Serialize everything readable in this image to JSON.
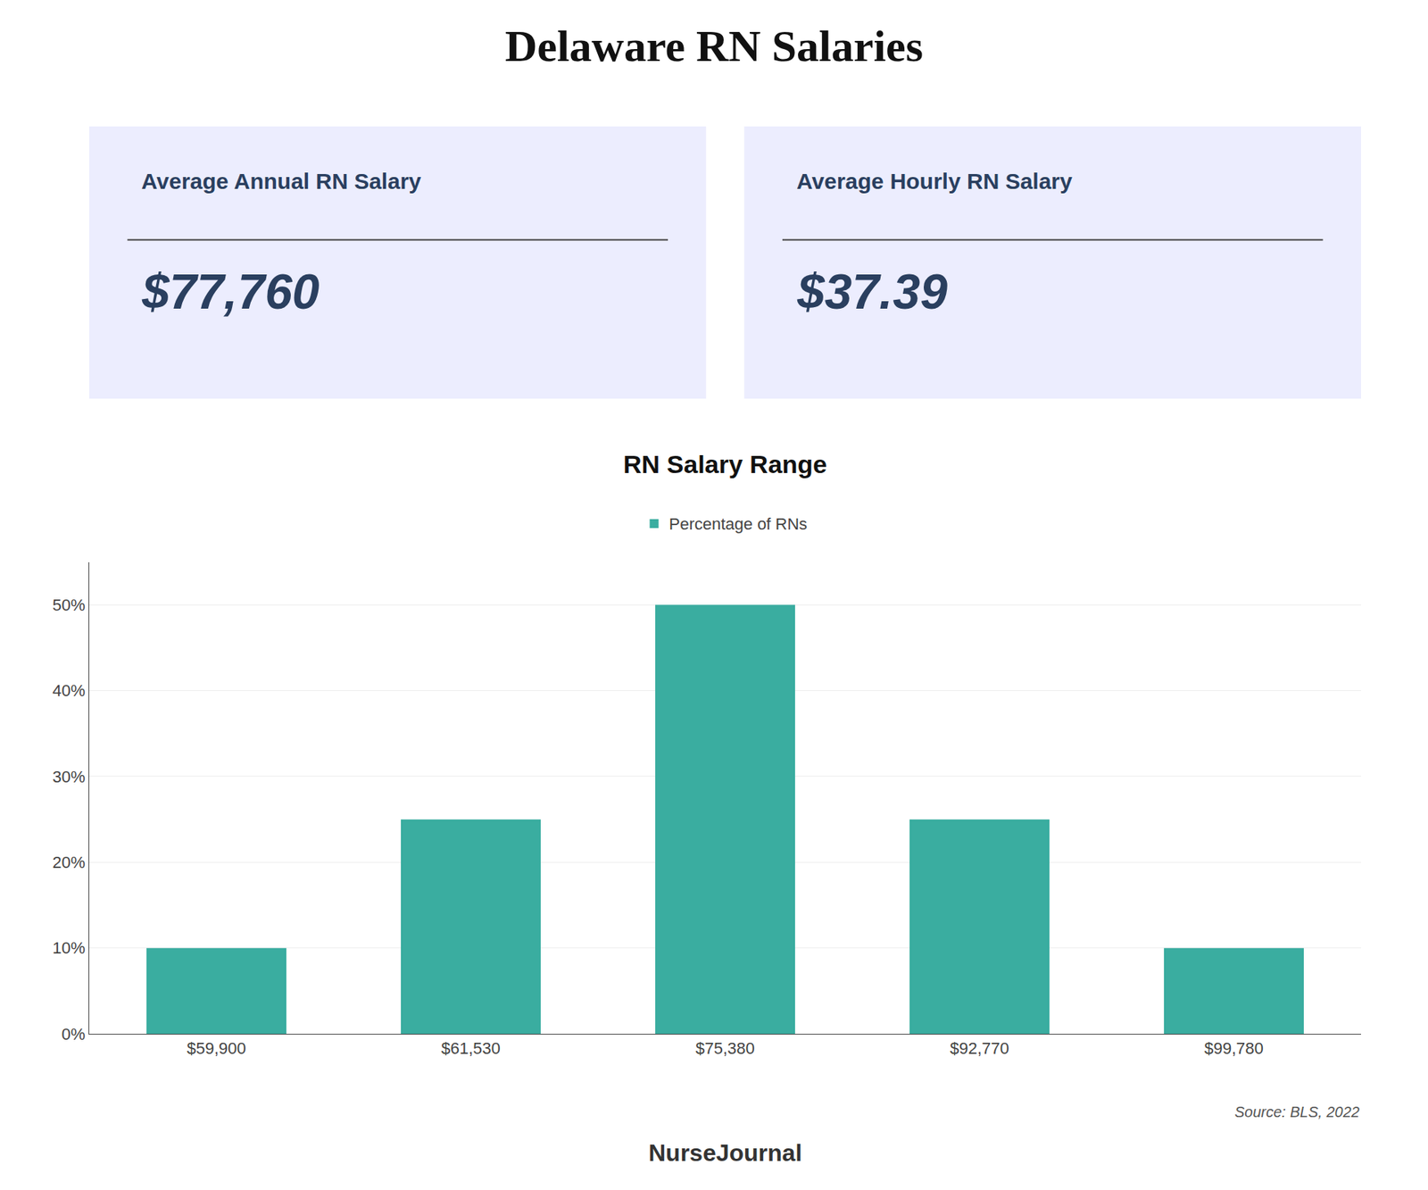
{
  "chart_data": {
    "type": "bar",
    "title": "Delaware RN Salaries",
    "subtitle": "RN Salary Range",
    "categories": [
      "$59,900",
      "$61,530",
      "$75,380",
      "$92,770",
      "$99,780"
    ],
    "series": [
      {
        "name": "Percentage of RNs",
        "color": "#3aada0",
        "values": [
          10,
          25,
          50,
          25,
          10
        ]
      }
    ],
    "ylim": [
      0,
      55
    ],
    "yticks": [
      {
        "value": 0,
        "label": "0%"
      },
      {
        "value": 10,
        "label": "10%"
      },
      {
        "value": 20,
        "label": "20%"
      },
      {
        "value": 30,
        "label": "30%"
      },
      {
        "value": 40,
        "label": "40%"
      },
      {
        "value": 50,
        "label": "50%"
      }
    ],
    "grid": true,
    "legend": "top",
    "annotations": [
      "Average Annual RN Salary",
      "$77,760",
      "Average Hourly RN Salary",
      "$37.39",
      "Source: BLS, 2022",
      "NurseJournal"
    ]
  }
}
